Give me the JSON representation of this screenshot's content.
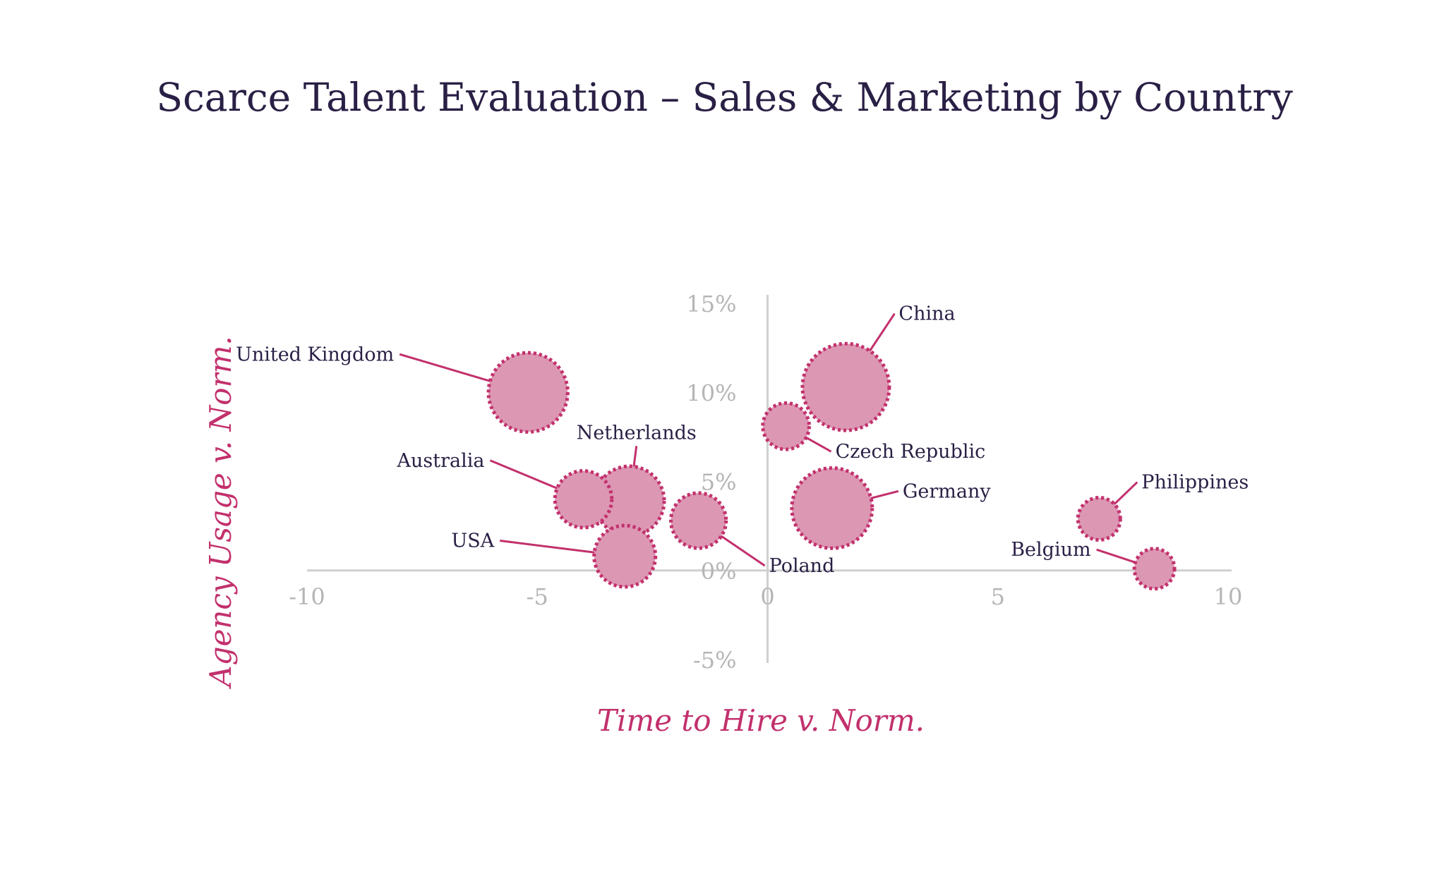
{
  "chart_data": {
    "type": "bubble",
    "title": "Scarce Talent Evaluation – Sales & Marketing by Country",
    "xlabel": "Time to Hire v. Norm.",
    "ylabel": "Agency Usage v. Norm.",
    "xlim": [
      -10,
      10
    ],
    "ylim": [
      -5,
      15
    ],
    "x_ticks": [
      "-10",
      "-5",
      "0",
      "5",
      "10"
    ],
    "y_ticks": [
      "15%",
      "10%",
      "5%",
      "0%",
      "-5%"
    ],
    "colors": {
      "fill": "#dc97b3",
      "stroke": "#c2306c",
      "axis": "#d0d0d0",
      "label": "#2a1f45"
    },
    "points": [
      {
        "name": "United Kingdom",
        "x": -5.2,
        "y": 10,
        "size": 3.5
      },
      {
        "name": "China",
        "x": 1.7,
        "y": 10.3,
        "size": 4.2
      },
      {
        "name": "Czech Republic",
        "x": 0.4,
        "y": 8.1,
        "size": 1.2
      },
      {
        "name": "Netherlands",
        "x": -3.0,
        "y": 3.9,
        "size": 2.7
      },
      {
        "name": "Australia",
        "x": -4.0,
        "y": 4.0,
        "size": 1.8
      },
      {
        "name": "Germany",
        "x": 1.4,
        "y": 3.5,
        "size": 3.6
      },
      {
        "name": "Poland",
        "x": -1.5,
        "y": 2.8,
        "size": 1.7
      },
      {
        "name": "USA",
        "x": -3.1,
        "y": 0.8,
        "size": 2.1
      },
      {
        "name": "Philippines",
        "x": 7.2,
        "y": 2.9,
        "size": 1.0
      },
      {
        "name": "Belgium",
        "x": 8.4,
        "y": 0.1,
        "size": 0.9
      }
    ]
  }
}
